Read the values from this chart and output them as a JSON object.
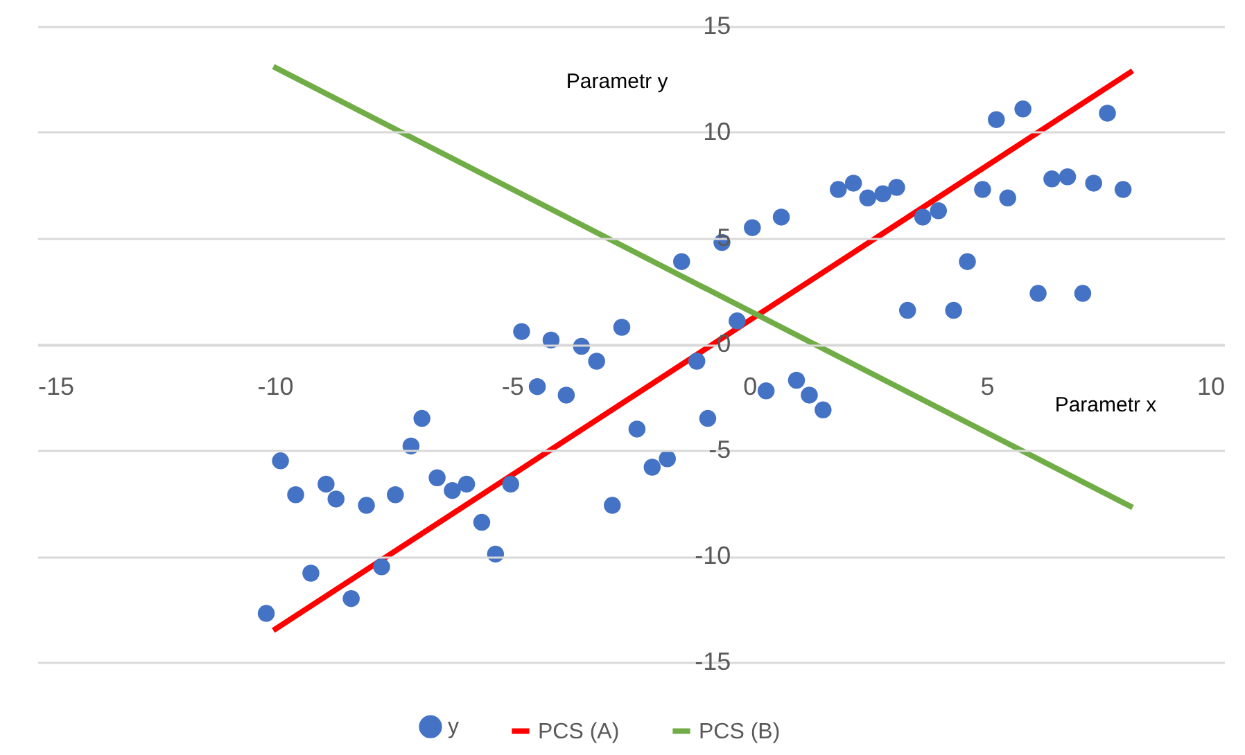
{
  "chart_data": {
    "type": "scatter",
    "xlabel": "Parametr x",
    "ylabel": "Parametr y",
    "xlim": [
      -15,
      10
    ],
    "xticks": [
      -15,
      -10,
      -5,
      0,
      5,
      10
    ],
    "ylim": [
      -15,
      15
    ],
    "yticks": [
      -15,
      -10,
      -5,
      0,
      5,
      10,
      15
    ],
    "grid": "y",
    "legend": "bottom",
    "series": [
      {
        "name": "y",
        "marker": "circle",
        "color": "#4472c4",
        "x": [
          -10.18,
          -9.88,
          -9.56,
          -9.24,
          -8.92,
          -8.71,
          -8.39,
          -8.07,
          -7.75,
          -7.46,
          -7.13,
          -6.9,
          -6.58,
          -6.26,
          -5.96,
          -5.64,
          -5.35,
          -5.03,
          -4.8,
          -4.47,
          -4.18,
          -3.86,
          -3.54,
          -3.22,
          -2.89,
          -2.69,
          -2.37,
          -2.05,
          -1.73,
          -1.43,
          -1.11,
          -0.88,
          -0.58,
          -0.26,
          0.06,
          0.35,
          0.67,
          0.99,
          1.26,
          1.55,
          1.87,
          2.19,
          2.49,
          2.81,
          3.1,
          3.33,
          3.65,
          3.98,
          4.3,
          4.59,
          4.91,
          5.2,
          5.44,
          5.76,
          6.08,
          6.37,
          6.7,
          7.02,
          7.25,
          7.54,
          7.87
        ],
        "values": [
          -12.7,
          -5.5,
          -7.1,
          -10.8,
          -6.6,
          -7.3,
          -12.0,
          -7.6,
          -10.5,
          -7.1,
          -4.8,
          -3.5,
          -6.3,
          -6.9,
          -6.6,
          -8.4,
          -9.9,
          -6.6,
          0.6,
          -2.0,
          0.2,
          -2.4,
          -0.1,
          -0.8,
          -7.6,
          0.8,
          -4.0,
          -5.8,
          -5.4,
          3.9,
          -0.8,
          -3.5,
          4.8,
          1.1,
          5.5,
          -2.2,
          6.0,
          -1.7,
          -2.4,
          -3.1,
          7.3,
          7.6,
          6.9,
          7.1,
          7.4,
          1.6,
          6.0,
          6.3,
          1.6,
          3.9,
          7.3,
          10.6,
          6.9,
          11.1,
          2.4,
          7.8,
          7.9,
          2.4,
          7.6,
          10.9,
          7.3
        ]
      },
      {
        "name": "PCS (A)",
        "type": "line",
        "color": "#ff0000",
        "x": [
          -10.03,
          8.07
        ],
        "values": [
          -13.5,
          12.9
        ]
      },
      {
        "name": "PCS (B)",
        "type": "line",
        "color": "#70ad47",
        "x": [
          -10.03,
          8.07
        ],
        "values": [
          13.1,
          -7.7
        ]
      }
    ]
  }
}
